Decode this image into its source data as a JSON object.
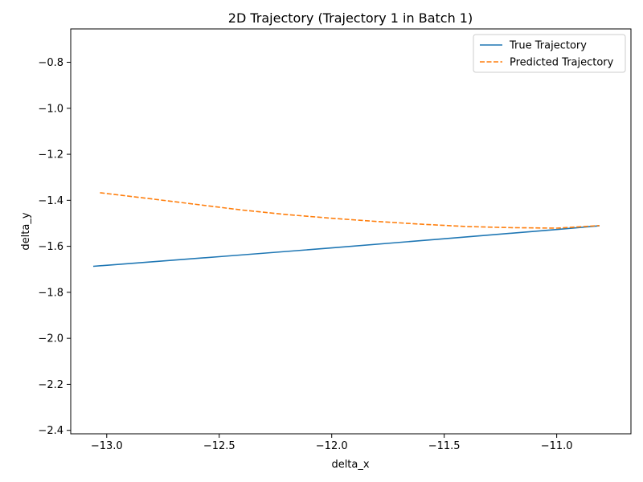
{
  "chart_data": {
    "type": "line",
    "title": "2D Trajectory (Trajectory 1 in Batch 1)",
    "xlabel": "delta_x",
    "ylabel": "delta_y",
    "xlim": [
      -13.16,
      -10.67
    ],
    "ylim": [
      -2.415,
      -0.655
    ],
    "xticks": [
      -13.0,
      -12.5,
      -12.0,
      -11.5,
      -11.0
    ],
    "xtick_labels": [
      "−13.0",
      "−12.5",
      "−12.0",
      "−11.5",
      "−11.0"
    ],
    "yticks": [
      -2.4,
      -2.2,
      -2.0,
      -1.8,
      -1.6,
      -1.4,
      -1.2,
      -1.0,
      -0.8
    ],
    "ytick_labels": [
      "−2.4",
      "−2.2",
      "−2.0",
      "−1.8",
      "−1.6",
      "−1.4",
      "−1.2",
      "−1.0",
      "−0.8"
    ],
    "grid": false,
    "legend_position": "top-right",
    "series": [
      {
        "name": "True Trajectory",
        "color": "#1f77b4",
        "style": "solid",
        "x": [
          -13.06,
          -12.5,
          -12.0,
          -11.5,
          -11.0,
          -10.81
        ],
        "y": [
          -1.687,
          -1.645,
          -1.607,
          -1.567,
          -1.527,
          -1.511
        ]
      },
      {
        "name": "Predicted Trajectory",
        "color": "#ff7f0e",
        "style": "dashed",
        "x": [
          -13.03,
          -12.8,
          -12.6,
          -12.4,
          -12.2,
          -12.0,
          -11.8,
          -11.6,
          -11.4,
          -11.2,
          -11.0,
          -10.81
        ],
        "y": [
          -1.367,
          -1.394,
          -1.418,
          -1.442,
          -1.462,
          -1.478,
          -1.492,
          -1.504,
          -1.514,
          -1.519,
          -1.521,
          -1.51
        ]
      }
    ]
  }
}
